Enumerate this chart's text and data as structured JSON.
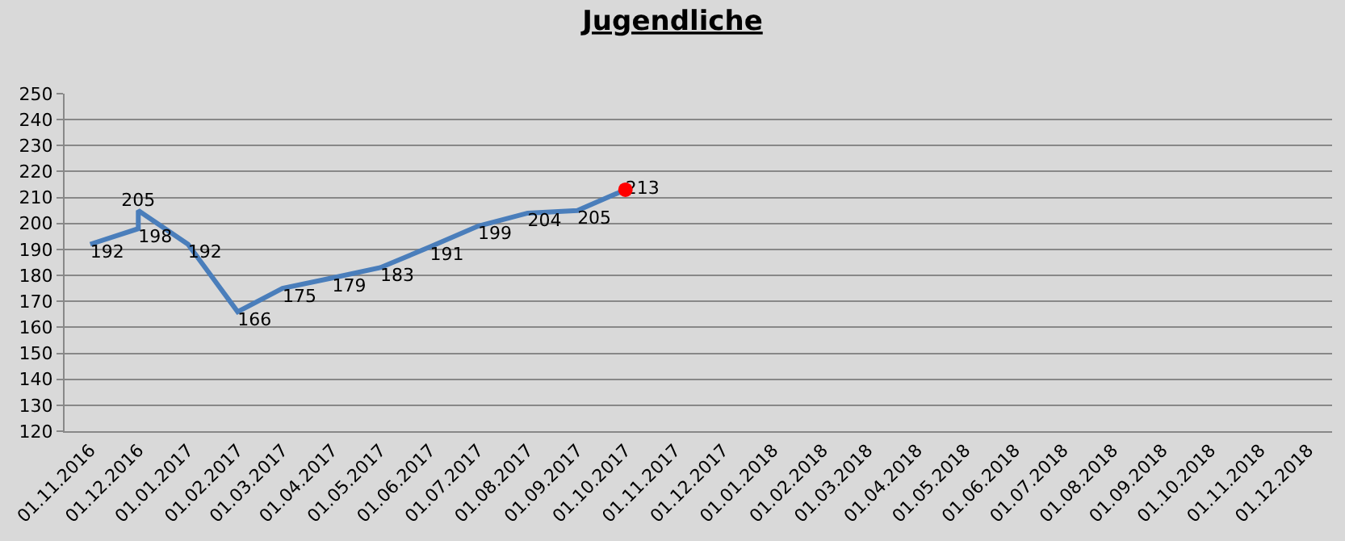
{
  "chart_data": {
    "type": "line",
    "title": "Jugendliche",
    "x": [
      "2016-11",
      "2016-12",
      "2016-12",
      "2017-01",
      "2017-02",
      "2017-03",
      "2017-04",
      "2017-05",
      "2017-06",
      "2017-07",
      "2017-08",
      "2017-09",
      "2017-10"
    ],
    "series": [
      {
        "color": "#4a7ebb",
        "values": [
          192,
          198,
          205,
          192,
          166,
          175,
          179,
          183,
          191,
          199,
          204,
          205,
          213
        ],
        "value_labels": [
          "192",
          "198",
          "205",
          "192",
          "166",
          "175",
          "179",
          "183",
          "191",
          "199",
          "204",
          "205",
          "213"
        ],
        "marker": "none",
        "line_style": "solid"
      },
      {
        "type": "scatter",
        "color": "#ff0000",
        "x": [
          "2017-10"
        ],
        "values": [
          213
        ],
        "marker": "circle"
      }
    ],
    "xlim": [
      "2016-10-16",
      "2018-12-16"
    ],
    "xticks": [
      {
        "value": "2016-11-01",
        "label": "01.11.2016"
      },
      {
        "value": "2016-12-01",
        "label": "01.12.2016"
      },
      {
        "value": "2017-01-01",
        "label": "01.01.2017"
      },
      {
        "value": "2017-02-01",
        "label": "01.02.2017"
      },
      {
        "value": "2017-03-01",
        "label": "01.03.2017"
      },
      {
        "value": "2017-04-01",
        "label": "01.04.2017"
      },
      {
        "value": "2017-05-01",
        "label": "01.05.2017"
      },
      {
        "value": "2017-06-01",
        "label": "01.06.2017"
      },
      {
        "value": "2017-07-01",
        "label": "01.07.2017"
      },
      {
        "value": "2017-08-01",
        "label": "01.08.2017"
      },
      {
        "value": "2017-09-01",
        "label": "01.09.2017"
      },
      {
        "value": "2017-10-01",
        "label": "01.10.2017"
      },
      {
        "value": "2017-11-01",
        "label": "01.11.2017"
      },
      {
        "value": "2017-12-01",
        "label": "01.12.2017"
      },
      {
        "value": "2018-01-01",
        "label": "01.01.2018"
      },
      {
        "value": "2018-02-01",
        "label": "01.02.2018"
      },
      {
        "value": "2018-03-01",
        "label": "01.03.2018"
      },
      {
        "value": "2018-04-01",
        "label": "01.04.2018"
      },
      {
        "value": "2018-05-01",
        "label": "01.05.2018"
      },
      {
        "value": "2018-06-01",
        "label": "01.06.2018"
      },
      {
        "value": "2018-07-01",
        "label": "01.07.2018"
      },
      {
        "value": "2018-08-01",
        "label": "01.08.2018"
      },
      {
        "value": "2018-09-01",
        "label": "01.09.2018"
      },
      {
        "value": "2018-10-01",
        "label": "01.10.2018"
      },
      {
        "value": "2018-11-01",
        "label": "01.11.2018"
      },
      {
        "value": "2018-12-01",
        "label": "01.12.2018"
      }
    ],
    "ylim": [
      120,
      250
    ],
    "yticks": [
      120,
      130,
      140,
      150,
      160,
      170,
      180,
      190,
      200,
      210,
      220,
      230,
      240,
      250
    ],
    "grid": "y",
    "legend": false
  }
}
